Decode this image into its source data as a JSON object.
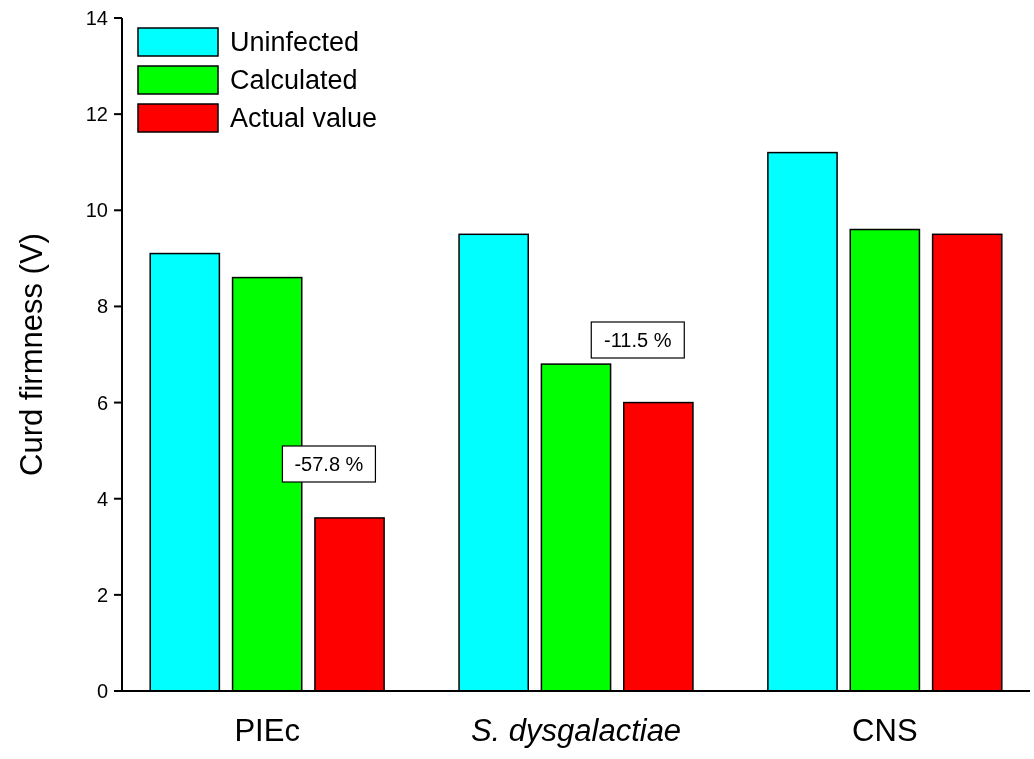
{
  "chart_data": {
    "type": "bar",
    "ylabel": "Curd firmness (V)",
    "categories": [
      "PIEc",
      "S. dysgalactiae",
      "CNS"
    ],
    "series": [
      {
        "name": "Uninfected",
        "color": "#00ffff",
        "values": [
          9.1,
          9.5,
          11.2
        ]
      },
      {
        "name": "Calculated",
        "color": "#00ff00",
        "values": [
          8.6,
          6.8,
          9.6
        ]
      },
      {
        "name": "Actual value",
        "color": "#ff0000",
        "values": [
          3.6,
          6.0,
          9.5
        ]
      }
    ],
    "ylim": [
      0,
      14
    ],
    "yticks": [
      0,
      2,
      4,
      6,
      8,
      10,
      12,
      14
    ],
    "grid": false,
    "legend": "top left",
    "annotations": [
      "-57.8 %",
      "-11.5 %"
    ]
  }
}
